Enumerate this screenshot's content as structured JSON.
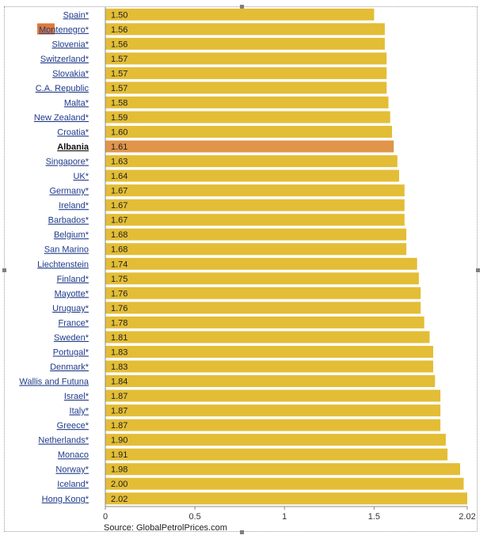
{
  "chart_data": {
    "type": "bar",
    "orientation": "horizontal",
    "categories": [
      "Spain*",
      "Montenegro*",
      "Slovenia*",
      "Switzerland*",
      "Slovakia*",
      "C.A. Republic",
      "Malta*",
      "New Zealand*",
      "Croatia*",
      "Albania",
      "Singapore*",
      "UK*",
      "Germany*",
      "Ireland*",
      "Barbados*",
      "Belgium*",
      "San Marino",
      "Liechtenstein",
      "Finland*",
      "Mayotte*",
      "Uruguay*",
      "France*",
      "Sweden*",
      "Portugal*",
      "Denmark*",
      "Wallis and Futuna",
      "Israel*",
      "Italy*",
      "Greece*",
      "Netherlands*",
      "Monaco",
      "Norway*",
      "Iceland*",
      "Hong Kong*"
    ],
    "values": [
      1.5,
      1.56,
      1.56,
      1.57,
      1.57,
      1.57,
      1.58,
      1.59,
      1.6,
      1.61,
      1.63,
      1.64,
      1.67,
      1.67,
      1.67,
      1.68,
      1.68,
      1.74,
      1.75,
      1.76,
      1.76,
      1.78,
      1.81,
      1.83,
      1.83,
      1.84,
      1.87,
      1.87,
      1.87,
      1.9,
      1.91,
      1.98,
      2.0,
      2.02
    ],
    "value_labels": [
      "1.50",
      "1.56",
      "1.56",
      "1.57",
      "1.57",
      "1.57",
      "1.58",
      "1.59",
      "1.60",
      "1.61",
      "1.63",
      "1.64",
      "1.67",
      "1.67",
      "1.67",
      "1.68",
      "1.68",
      "1.74",
      "1.75",
      "1.76",
      "1.76",
      "1.78",
      "1.81",
      "1.83",
      "1.83",
      "1.84",
      "1.87",
      "1.87",
      "1.87",
      "1.90",
      "1.91",
      "1.98",
      "2.00",
      "2.02"
    ],
    "highlight_category": "Albania",
    "xlim": [
      0,
      2.02
    ],
    "x_ticks": [
      0,
      0.5,
      1,
      1.5,
      2.02
    ],
    "x_tick_labels": [
      "0",
      "0.5",
      "1",
      "1.5",
      "2.02"
    ],
    "source": "Source: GlobalPetrolPrices.com",
    "colors": {
      "bar": "#e3bd36",
      "highlight": "#e0954a",
      "label_highlight_bg": "#e07a3a"
    }
  }
}
